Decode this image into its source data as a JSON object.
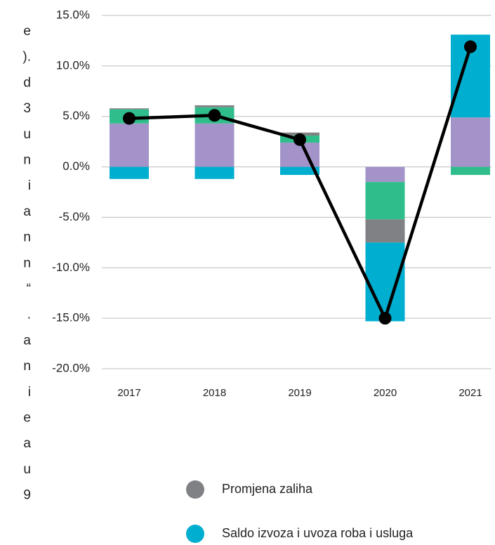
{
  "side_text": [
    "e",
    ").",
    "d",
    "3",
    "u",
    "n",
    "i",
    "a",
    "n",
    "n",
    "“",
    ".",
    "a",
    "n",
    "i",
    "e",
    "a",
    "u",
    "9"
  ],
  "chart_data": {
    "type": "bar",
    "stacked": true,
    "categories": [
      "2017",
      "2018",
      "2019",
      "2020",
      "2021"
    ],
    "series": [
      {
        "color": "#a393c8",
        "values": [
          4.3,
          4.3,
          2.4,
          -1.5,
          4.9
        ]
      },
      {
        "color": "#2fbe8b",
        "values": [
          1.4,
          1.6,
          0.7,
          -3.7,
          -0.8
        ]
      },
      {
        "name": "Promjena zaliha",
        "color": "#808184",
        "values": [
          0.1,
          0.2,
          0.3,
          -2.3,
          0
        ]
      },
      {
        "name": "Saldo izvoza i uvoza roba i usluga",
        "color": "#00aecf",
        "values": [
          -1.2,
          -1.2,
          -0.8,
          -7.8,
          8.2
        ]
      }
    ],
    "line": {
      "color": "#000000",
      "values": [
        4.8,
        5.1,
        2.7,
        -15.0,
        11.9
      ]
    },
    "ylim": [
      -20,
      15
    ],
    "yticks": [
      {
        "value": -20,
        "label": "-20.0%"
      },
      {
        "value": -15,
        "label": "-15.0%"
      },
      {
        "value": -10,
        "label": "-10.0%"
      },
      {
        "value": -5,
        "label": "-5.0%"
      },
      {
        "value": 0,
        "label": "0.0%"
      },
      {
        "value": 5,
        "label": "5.0%"
      },
      {
        "value": 10,
        "label": "10.0%"
      },
      {
        "value": 15,
        "label": "15.0%"
      }
    ],
    "grid": true
  }
}
